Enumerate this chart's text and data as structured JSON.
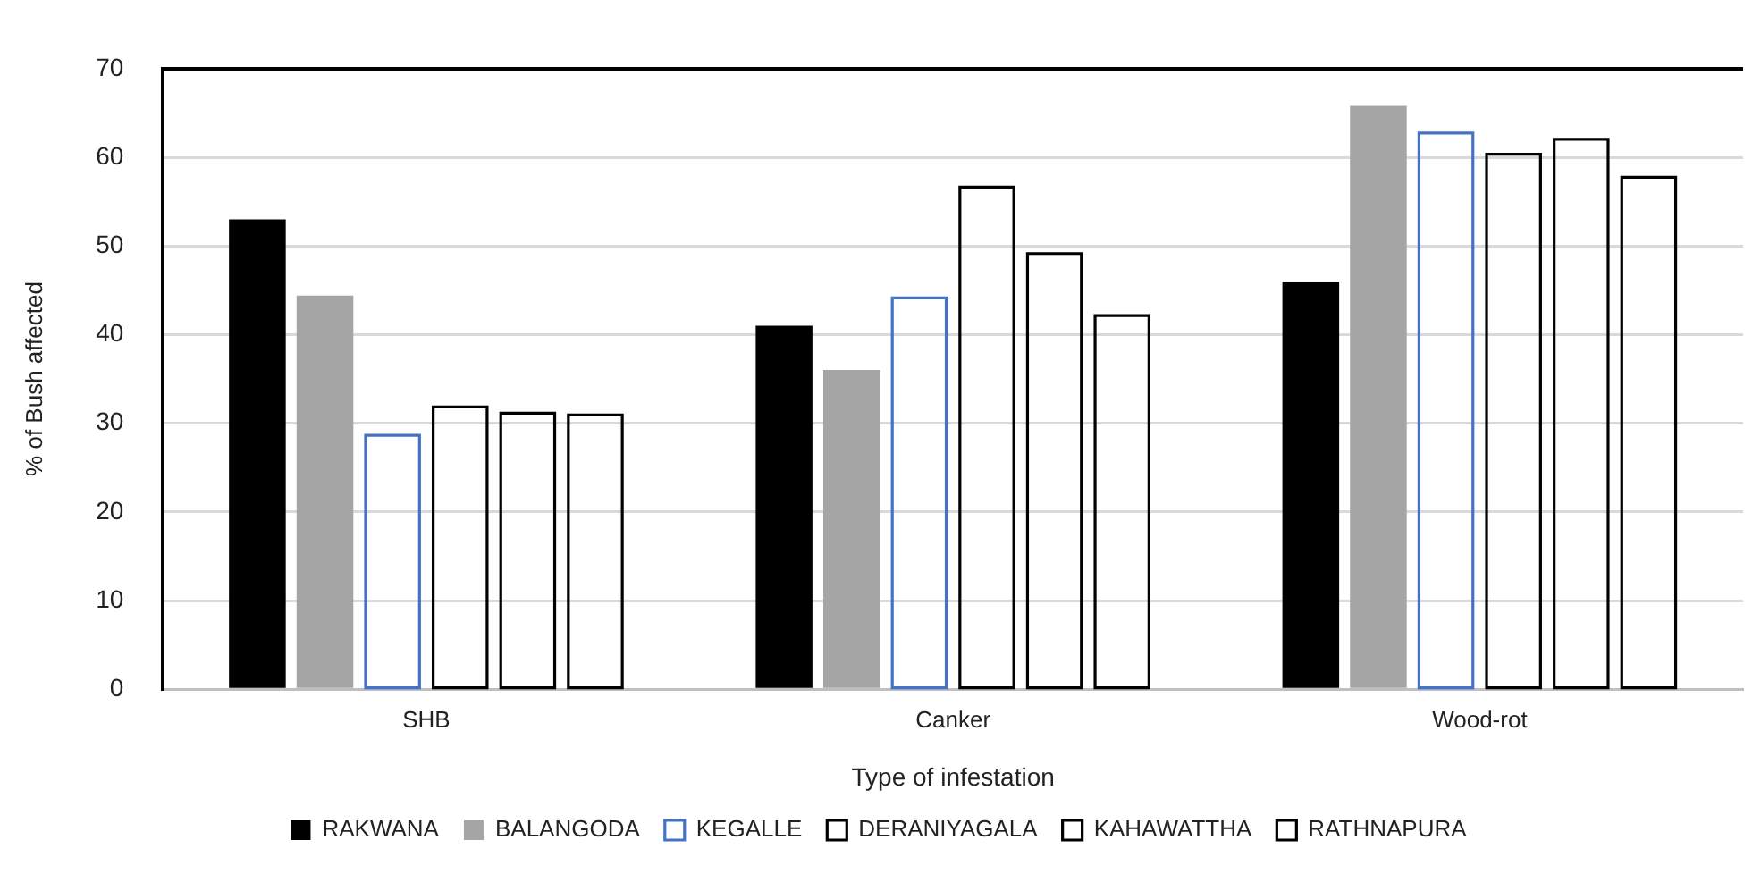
{
  "chart_data": {
    "type": "bar",
    "xlabel": "Type of infestation",
    "ylabel": "% of Bush affected",
    "categories": [
      "SHB",
      "Canker",
      "Wood-rot"
    ],
    "series": [
      {
        "name": "RAKWANA",
        "color": "#000000",
        "values": [
          53.0,
          41.0,
          46.0
        ]
      },
      {
        "name": "BALANGODA",
        "color": "#a5a5a5",
        "values": [
          44.4,
          36.0,
          65.8
        ]
      },
      {
        "name": "KEGALLE",
        "color": "#4472c4",
        "values": [
          28.8,
          44.3,
          62.9
        ]
      },
      {
        "name": "DERANIYAGALA",
        "color": "#000000",
        "values": [
          32.0,
          56.8,
          60.5
        ]
      },
      {
        "name": "KAHAWATTHA",
        "color": "#000000",
        "values": [
          31.3,
          49.3,
          62.2
        ]
      },
      {
        "name": "RATHNAPURA",
        "color": "#000000",
        "values": [
          31.1,
          42.3,
          57.9
        ]
      }
    ],
    "ylim": [
      0,
      70
    ],
    "yticks": [
      0,
      10,
      20,
      30,
      40,
      50,
      60,
      70
    ],
    "grid": "y",
    "legend": "bottom"
  }
}
